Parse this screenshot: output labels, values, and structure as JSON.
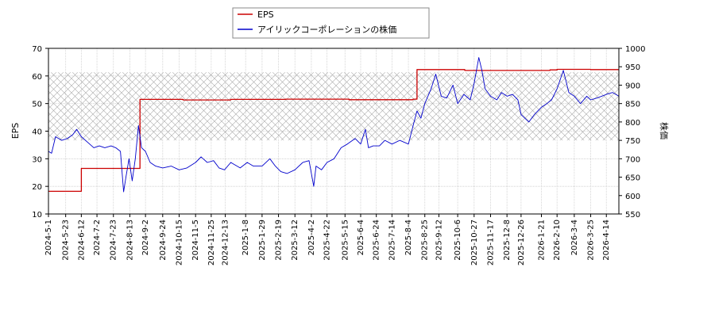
{
  "chart_data": {
    "type": "line",
    "title": "",
    "ylabel_left": "EPS",
    "ylabel_right": "株価",
    "ylim_left": [
      10,
      70
    ],
    "ylim_right": [
      550,
      1000
    ],
    "left_ticks": [
      10,
      20,
      30,
      40,
      50,
      60,
      70
    ],
    "right_ticks": [
      550,
      600,
      650,
      700,
      750,
      800,
      850,
      900,
      950,
      1000
    ],
    "x_range": [
      "2024-05-01",
      "2026-04-30"
    ],
    "x_ticks": [
      "2024-5-1",
      "2024-5-23",
      "2024-6-12",
      "2024-7-2",
      "2024-7-23",
      "2024-8-13",
      "2024-9-2",
      "2024-9-24",
      "2024-10-15",
      "2024-11-5",
      "2024-11-25",
      "2024-12-13",
      "2025-1-8",
      "2025-1-29",
      "2025-2-19",
      "2025-3-12",
      "2025-4-2",
      "2025-4-22",
      "2025-5-15",
      "2025-6-4",
      "2025-6-24",
      "2025-7-14",
      "2025-8-4",
      "2025-8-25",
      "2025-9-12",
      "2025-10-6",
      "2025-10-27",
      "2025-11-17",
      "2025-12-8",
      "2025-12-26",
      "2026-1-21",
      "2026-2-10",
      "2026-3-4",
      "2026-3-25",
      "2026-4-14"
    ],
    "shaded_band": {
      "axis": "right",
      "from": 750,
      "to": 935
    },
    "grid": true,
    "legend_position": "top-center",
    "series": [
      {
        "name": "EPS",
        "axis": "left",
        "color": "#cc0000",
        "step": true,
        "x": [
          "2024-05-01",
          "2024-06-12",
          "2024-08-26",
          "2024-10-20",
          "2024-12-20",
          "2025-02-28",
          "2025-05-20",
          "2025-08-10",
          "2025-08-15",
          "2025-10-15",
          "2025-12-15",
          "2026-02-01",
          "2026-02-10",
          "2026-03-25",
          "2026-04-30"
        ],
        "values": [
          18.2,
          26.5,
          51.5,
          51.3,
          51.5,
          51.6,
          51.4,
          51.6,
          62.3,
          62.0,
          62.0,
          62.2,
          62.4,
          62.3,
          62.3
        ]
      },
      {
        "name": "アイリックコーポレーションの株価",
        "axis": "right",
        "color": "#0000cc",
        "step": false,
        "x": [
          "2024-05-01",
          "2024-05-05",
          "2024-05-10",
          "2024-05-18",
          "2024-05-25",
          "2024-06-01",
          "2024-06-06",
          "2024-06-12",
          "2024-06-20",
          "2024-06-28",
          "2024-07-05",
          "2024-07-12",
          "2024-07-20",
          "2024-07-26",
          "2024-08-01",
          "2024-08-05",
          "2024-08-08",
          "2024-08-12",
          "2024-08-16",
          "2024-08-20",
          "2024-08-24",
          "2024-08-28",
          "2024-09-02",
          "2024-09-08",
          "2024-09-15",
          "2024-09-24",
          "2024-10-05",
          "2024-10-15",
          "2024-10-25",
          "2024-11-05",
          "2024-11-12",
          "2024-11-20",
          "2024-11-28",
          "2024-12-05",
          "2024-12-12",
          "2024-12-20",
          "2025-01-01",
          "2025-01-10",
          "2025-01-18",
          "2025-01-29",
          "2025-02-08",
          "2025-02-15",
          "2025-02-22",
          "2025-03-02",
          "2025-03-12",
          "2025-03-22",
          "2025-03-30",
          "2025-04-05",
          "2025-04-08",
          "2025-04-15",
          "2025-04-22",
          "2025-05-01",
          "2025-05-10",
          "2025-05-18",
          "2025-05-28",
          "2025-06-04",
          "2025-06-10",
          "2025-06-14",
          "2025-06-20",
          "2025-06-28",
          "2025-07-05",
          "2025-07-14",
          "2025-07-24",
          "2025-08-04",
          "2025-08-10",
          "2025-08-15",
          "2025-08-20",
          "2025-08-25",
          "2025-09-02",
          "2025-09-08",
          "2025-09-15",
          "2025-09-22",
          "2025-09-30",
          "2025-10-06",
          "2025-10-14",
          "2025-10-22",
          "2025-10-27",
          "2025-11-02",
          "2025-11-06",
          "2025-11-10",
          "2025-11-17",
          "2025-11-25",
          "2025-12-01",
          "2025-12-08",
          "2025-12-15",
          "2025-12-22",
          "2025-12-26",
          "2026-01-05",
          "2026-01-12",
          "2026-01-21",
          "2026-01-28",
          "2026-02-03",
          "2026-02-10",
          "2026-02-18",
          "2026-02-25",
          "2026-03-04",
          "2026-03-12",
          "2026-03-20",
          "2026-03-25",
          "2026-04-02",
          "2026-04-08",
          "2026-04-14",
          "2026-04-22",
          "2026-04-30"
        ],
        "values": [
          720,
          715,
          760,
          750,
          755,
          765,
          780,
          760,
          745,
          730,
          735,
          730,
          735,
          730,
          720,
          610,
          650,
          700,
          640,
          700,
          790,
          730,
          720,
          690,
          680,
          675,
          680,
          670,
          675,
          690,
          705,
          690,
          695,
          675,
          670,
          690,
          675,
          690,
          680,
          680,
          700,
          680,
          665,
          660,
          670,
          690,
          695,
          625,
          680,
          670,
          690,
          700,
          730,
          740,
          755,
          740,
          780,
          730,
          735,
          735,
          750,
          740,
          750,
          740,
          790,
          830,
          810,
          850,
          890,
          930,
          870,
          865,
          900,
          850,
          875,
          860,
          905,
          975,
          940,
          890,
          870,
          860,
          880,
          870,
          875,
          860,
          820,
          800,
          820,
          840,
          850,
          860,
          890,
          940,
          880,
          870,
          850,
          870,
          860,
          865,
          870,
          875,
          880,
          870
        ]
      }
    ]
  }
}
